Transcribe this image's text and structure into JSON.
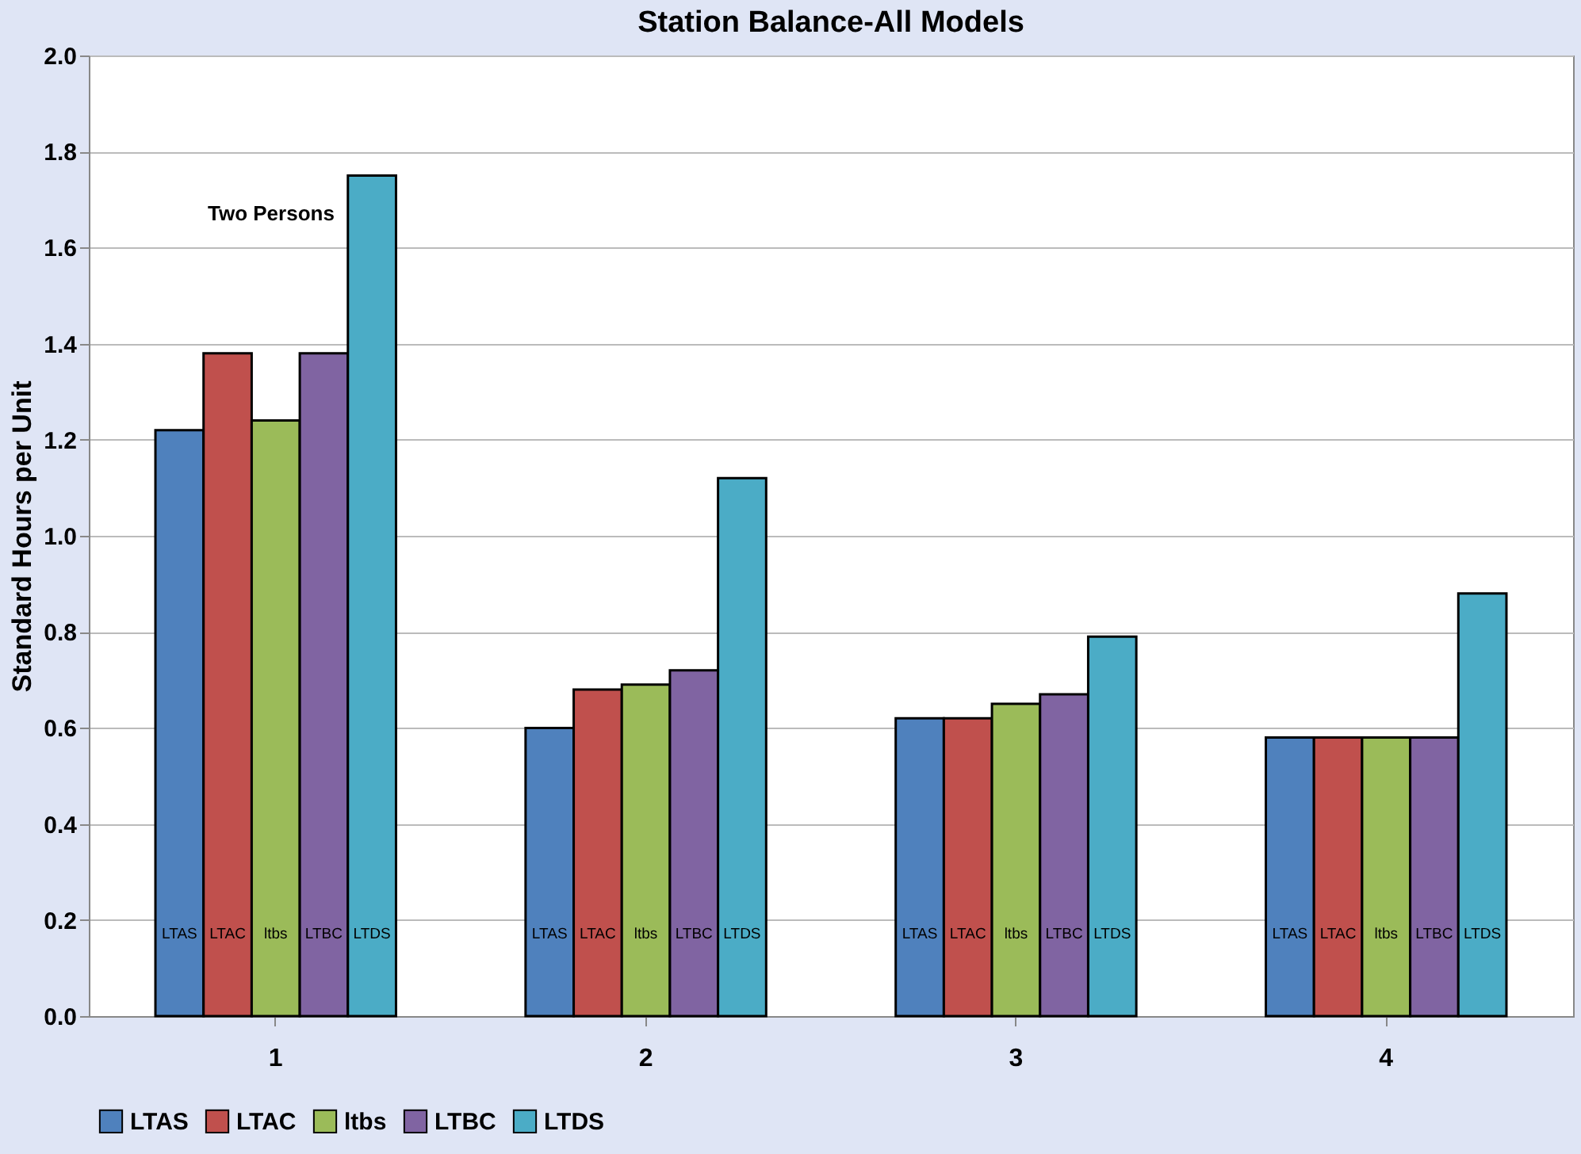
{
  "chart_data": {
    "type": "bar",
    "title": "Station Balance-All Models",
    "ylabel": "Standard Hours per Unit",
    "categories": [
      "1",
      "2",
      "3",
      "4"
    ],
    "series": [
      {
        "name": "LTAS",
        "color": "#4f81bd",
        "values": [
          1.22,
          0.6,
          0.62,
          0.58
        ]
      },
      {
        "name": "LTAC",
        "color": "#c0504d",
        "values": [
          1.38,
          0.68,
          0.62,
          0.58
        ]
      },
      {
        "name": "ltbs",
        "color": "#9bbb59",
        "values": [
          1.24,
          0.69,
          0.65,
          0.58
        ]
      },
      {
        "name": "LTBC",
        "color": "#8064a2",
        "values": [
          1.38,
          0.72,
          0.67,
          0.58
        ]
      },
      {
        "name": "LTDS",
        "color": "#4bacc6",
        "values": [
          1.75,
          1.12,
          0.79,
          0.88
        ]
      }
    ],
    "ylim": [
      0,
      2.0
    ],
    "yticks": [
      {
        "value": 0,
        "label": "0.0"
      },
      {
        "value": 0.2,
        "label": "0.2"
      },
      {
        "value": 0.4,
        "label": "0.4"
      },
      {
        "value": 0.6,
        "label": "0.6"
      },
      {
        "value": 0.8,
        "label": "0.8"
      },
      {
        "value": 1.0,
        "label": "1.0"
      },
      {
        "value": 1.2,
        "label": "1.2"
      },
      {
        "value": 1.4,
        "label": "1.4"
      },
      {
        "value": 1.6,
        "label": "1.6"
      },
      {
        "value": 1.8,
        "label": "1.8"
      },
      {
        "value": 2.0,
        "label": "2.0"
      }
    ],
    "annotations": [
      "Two Persons"
    ],
    "grid": "y",
    "legend": "bottom"
  }
}
